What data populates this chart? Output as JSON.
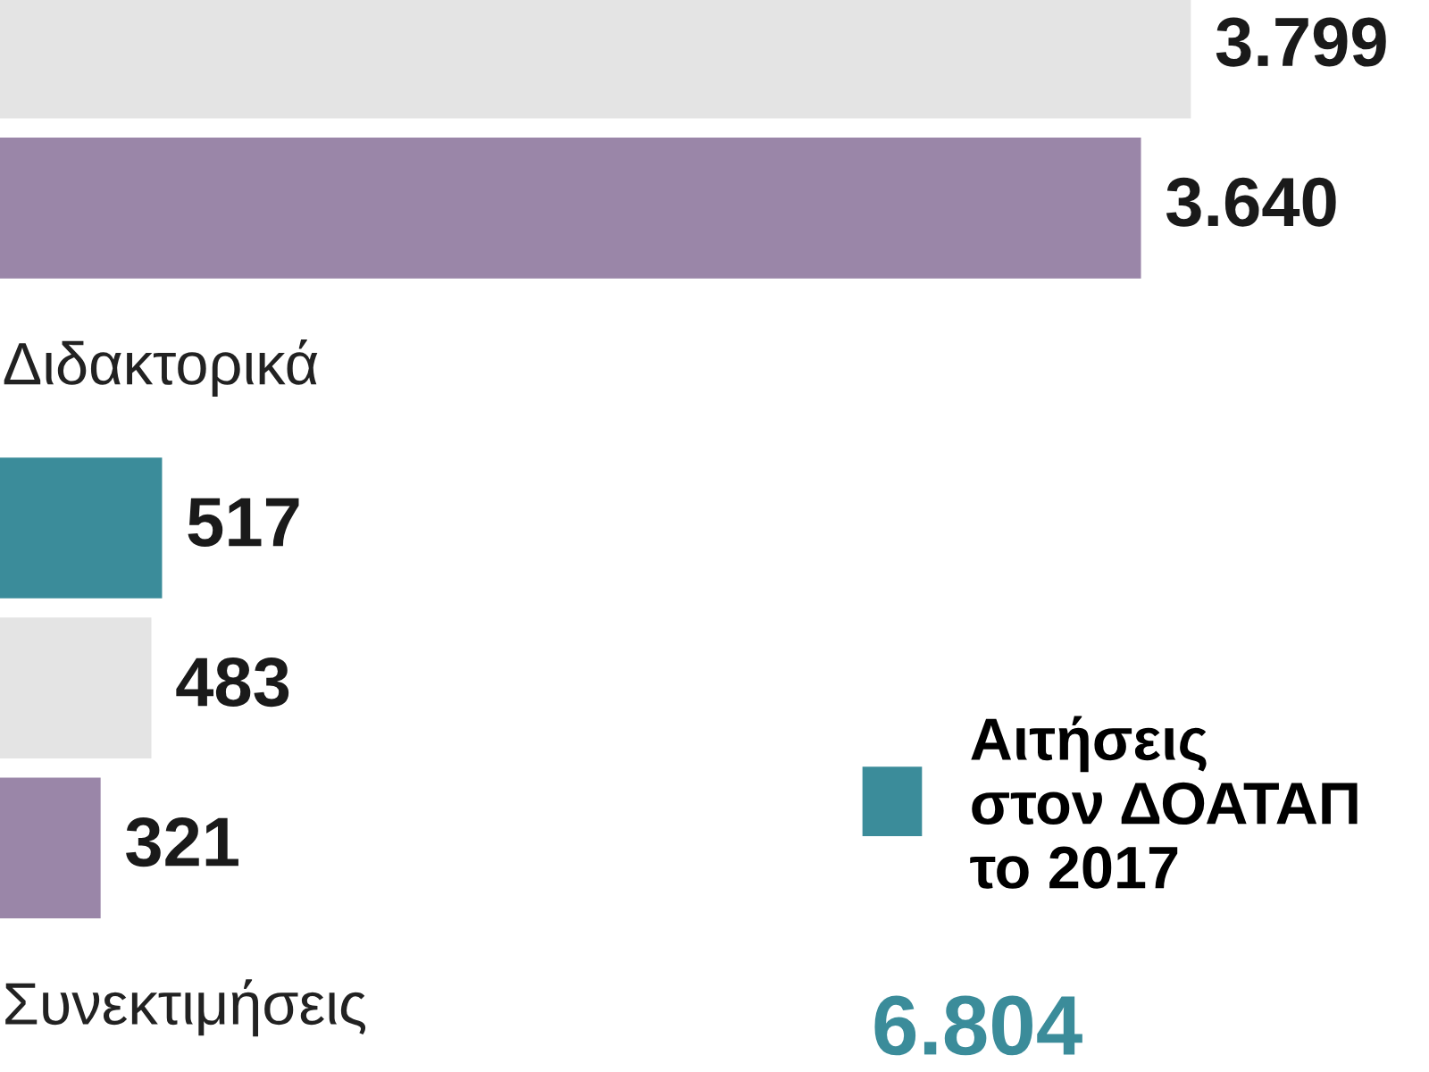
{
  "chart_data": {
    "type": "bar",
    "orientation": "horizontal",
    "categories": [
      null,
      "Διδακτορικά",
      "Συνεκτιμήσεις"
    ],
    "series": [
      {
        "name": "Αιτήσεις στον ΔΟΑΤΑΠ το 2017",
        "color": "#3b8c9a",
        "values": [
          null,
          517,
          null
        ],
        "value_labels": [
          null,
          "517",
          null
        ]
      },
      {
        "color": "#e4e4e4",
        "values": [
          3799,
          483,
          null
        ],
        "value_labels": [
          "3.799",
          "483",
          null
        ]
      },
      {
        "color": "#9a86a8",
        "values": [
          3640,
          321,
          null
        ],
        "value_labels": [
          "3.640",
          "321",
          null
        ]
      }
    ],
    "legend": "bottom right",
    "annotations": [
      "6.804"
    ]
  }
}
